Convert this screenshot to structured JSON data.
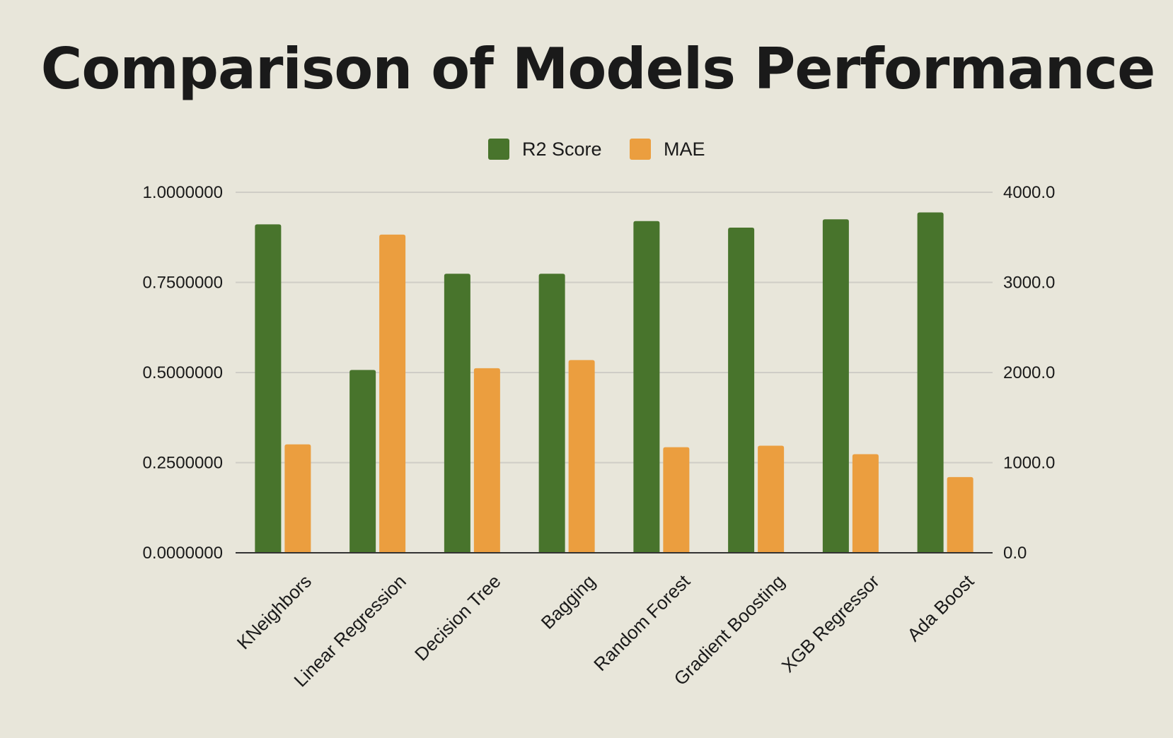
{
  "chart_data": {
    "type": "bar",
    "title": "Comparison of Models Performance",
    "categories": [
      "KNeighbors",
      "Linear Regression",
      "Decision Tree",
      "Bagging",
      "Random Forest",
      "Gradient Boosting",
      "XGB Regressor",
      "Ada Boost"
    ],
    "series": [
      {
        "name": "R2 Score",
        "axis": "left",
        "color": "#48742c",
        "values": [
          0.911,
          0.507,
          0.774,
          0.774,
          0.92,
          0.902,
          0.925,
          0.944
        ]
      },
      {
        "name": "MAE",
        "axis": "right",
        "color": "#eb9e3f",
        "values": [
          1203,
          3530,
          2048,
          2138,
          1172,
          1188,
          1094,
          840
        ]
      }
    ],
    "left_axis": {
      "range": [
        0,
        1
      ],
      "ticks": [
        0,
        0.25,
        0.5,
        0.75,
        1.0
      ],
      "tick_labels": [
        "0.0000000",
        "0.2500000",
        "0.5000000",
        "0.7500000",
        "1.0000000"
      ]
    },
    "right_axis": {
      "range": [
        0,
        4000
      ],
      "ticks": [
        0,
        1000,
        2000,
        3000,
        4000
      ],
      "tick_labels": [
        "0.0",
        "1000.0",
        "2000.0",
        "3000.0",
        "4000.0"
      ]
    },
    "xlabel": "",
    "ylabel": "",
    "grid": true,
    "legend_position": "top-center"
  }
}
